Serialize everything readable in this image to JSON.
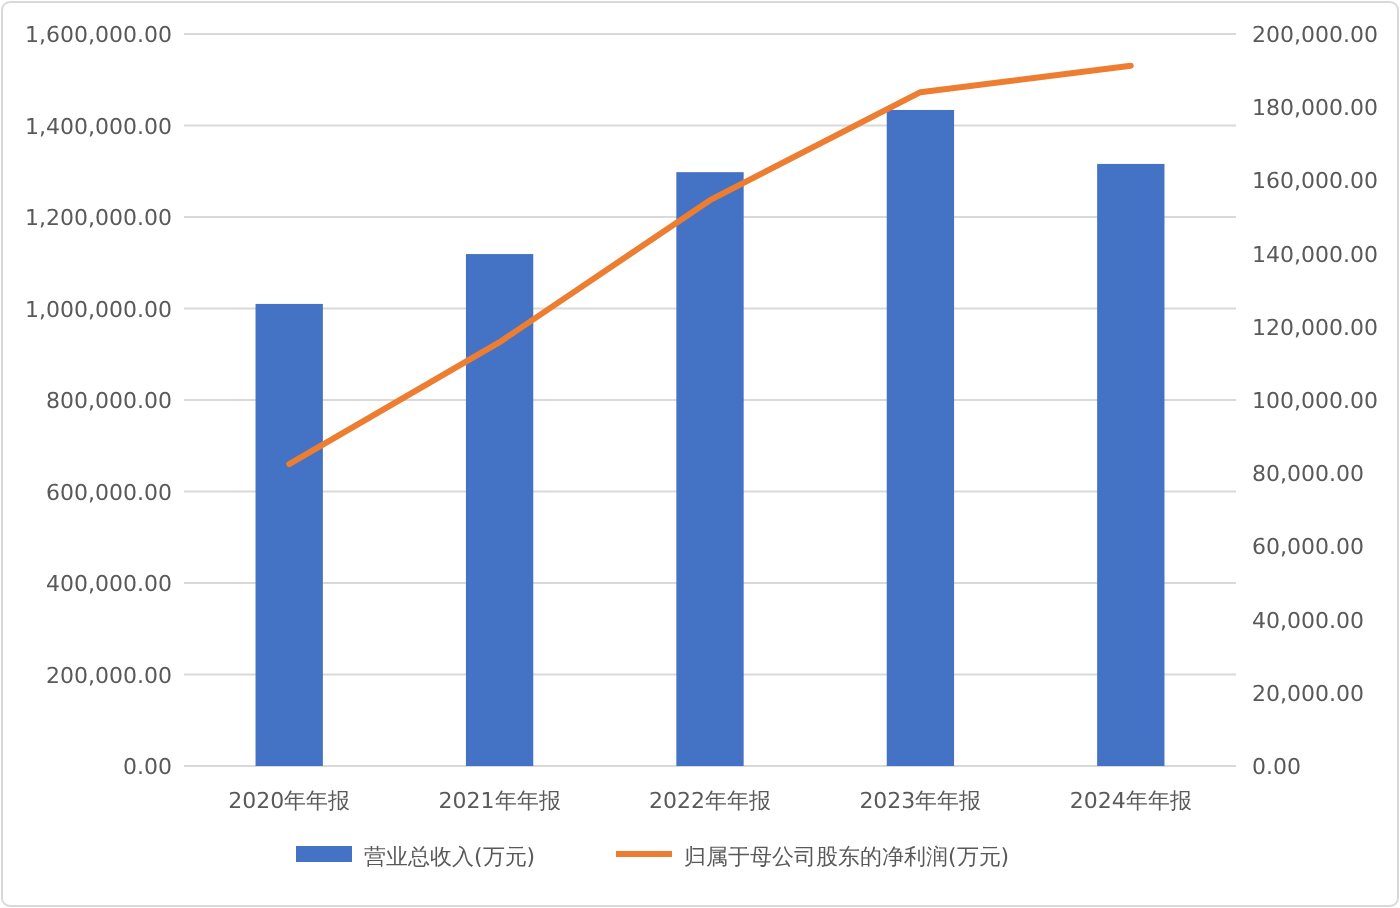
{
  "chart_data": {
    "type": "bar",
    "categories": [
      "2020年年报",
      "2021年年报",
      "2022年年报",
      "2023年年报",
      "2024年年报"
    ],
    "series": [
      {
        "name": "营业总收入(万元)",
        "color": "#4472c4",
        "values": [
          1010000,
          1119000,
          1298000,
          1434000,
          1316000
        ]
      },
      {
        "name": "归属于母公司股东的净利润(万元)",
        "type": "line",
        "axis": "y2",
        "color": "#ed7d31",
        "values": [
          82500,
          115800,
          154600,
          184100,
          191300
        ]
      }
    ],
    "ylim": [
      0,
      1600000
    ],
    "yticks": [
      {
        "value": 0,
        "label": "0.00"
      },
      {
        "value": 200000,
        "label": "200,000.00"
      },
      {
        "value": 400000,
        "label": "400,000.00"
      },
      {
        "value": 600000,
        "label": "600,000.00"
      },
      {
        "value": 800000,
        "label": "800,000.00"
      },
      {
        "value": 1000000,
        "label": "1,000,000.00"
      },
      {
        "value": 1200000,
        "label": "1,200,000.00"
      },
      {
        "value": 1400000,
        "label": "1,400,000.00"
      },
      {
        "value": 1600000,
        "label": "1,600,000.00"
      }
    ],
    "y2lim": [
      0,
      200000
    ],
    "y2ticks": [
      {
        "value": 0,
        "label": "0.00"
      },
      {
        "value": 20000,
        "label": "20,000.00"
      },
      {
        "value": 40000,
        "label": "40,000.00"
      },
      {
        "value": 60000,
        "label": "60,000.00"
      },
      {
        "value": 80000,
        "label": "80,000.00"
      },
      {
        "value": 100000,
        "label": "100,000.00"
      },
      {
        "value": 120000,
        "label": "120,000.00"
      },
      {
        "value": 140000,
        "label": "140,000.00"
      },
      {
        "value": 160000,
        "label": "160,000.00"
      },
      {
        "value": 180000,
        "label": "180,000.00"
      },
      {
        "value": 200000,
        "label": "200,000.00"
      }
    ],
    "grid": "y",
    "legend": "bottom",
    "marker": "none",
    "line_style": "solid"
  }
}
